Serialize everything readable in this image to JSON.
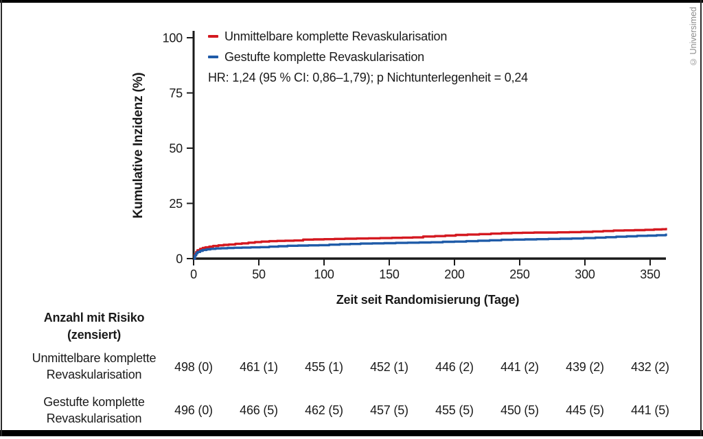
{
  "frame": {
    "copyright": "© Universimed"
  },
  "chart_data": {
    "type": "line",
    "subtype": "step-cumulative-incidence",
    "title": "",
    "xlabel": "Zeit seit Randomisierung (Tage)",
    "ylabel": "Kumulative Inzidenz (%)",
    "xlim": [
      0,
      365
    ],
    "ylim": [
      0,
      100
    ],
    "x_ticks": [
      0,
      50,
      100,
      150,
      200,
      250,
      300,
      350
    ],
    "y_ticks": [
      0,
      25,
      50,
      75,
      100
    ],
    "grid": false,
    "legend_position": "top-left-inside",
    "annotation": "HR: 1,24 (95 % CI: 0,86–1,79); p Nichtunterlegenheit = 0,24",
    "draw_end_day": 363,
    "series": [
      {
        "name": "Unmittelbare komplette Revaskularisation",
        "color": "#d41920",
        "points": [
          [
            0,
            0
          ],
          [
            1,
            2.0
          ],
          [
            2,
            3.0
          ],
          [
            3,
            3.8
          ],
          [
            5,
            4.4
          ],
          [
            7,
            4.8
          ],
          [
            9,
            5.1
          ],
          [
            12,
            5.4
          ],
          [
            15,
            5.7
          ],
          [
            19,
            6.0
          ],
          [
            23,
            6.2
          ],
          [
            27,
            6.4
          ],
          [
            32,
            6.7
          ],
          [
            37,
            6.9
          ],
          [
            42,
            7.2
          ],
          [
            47,
            7.5
          ],
          [
            52,
            7.7
          ],
          [
            58,
            7.9
          ],
          [
            64,
            8.0
          ],
          [
            70,
            8.1
          ],
          [
            77,
            8.2
          ],
          [
            84,
            8.6
          ],
          [
            92,
            8.7
          ],
          [
            100,
            8.8
          ],
          [
            108,
            8.9
          ],
          [
            116,
            9.0
          ],
          [
            125,
            9.1
          ],
          [
            134,
            9.2
          ],
          [
            143,
            9.3
          ],
          [
            152,
            9.4
          ],
          [
            160,
            9.5
          ],
          [
            168,
            9.6
          ],
          [
            176,
            10.0
          ],
          [
            185,
            10.2
          ],
          [
            193,
            10.4
          ],
          [
            201,
            10.7
          ],
          [
            210,
            10.9
          ],
          [
            219,
            11.1
          ],
          [
            228,
            11.3
          ],
          [
            236,
            11.5
          ],
          [
            244,
            11.6
          ],
          [
            252,
            11.7
          ],
          [
            261,
            11.8
          ],
          [
            270,
            11.8
          ],
          [
            279,
            11.9
          ],
          [
            288,
            12.0
          ],
          [
            297,
            12.1
          ],
          [
            306,
            12.3
          ],
          [
            314,
            12.5
          ],
          [
            322,
            12.7
          ],
          [
            330,
            12.8
          ],
          [
            338,
            12.9
          ],
          [
            346,
            13.0
          ],
          [
            353,
            13.2
          ],
          [
            359,
            13.3
          ],
          [
            362,
            13.4
          ]
        ]
      },
      {
        "name": "Gestufte komplette Revaskularisation",
        "color": "#1f5ba8",
        "points": [
          [
            0,
            0
          ],
          [
            1,
            1.5
          ],
          [
            2,
            2.4
          ],
          [
            3,
            3.0
          ],
          [
            5,
            3.5
          ],
          [
            7,
            3.9
          ],
          [
            10,
            4.2
          ],
          [
            13,
            4.4
          ],
          [
            17,
            4.6
          ],
          [
            21,
            4.7
          ],
          [
            26,
            4.8
          ],
          [
            31,
            4.9
          ],
          [
            37,
            5.0
          ],
          [
            44,
            5.1
          ],
          [
            51,
            5.2
          ],
          [
            58,
            5.4
          ],
          [
            65,
            5.6
          ],
          [
            72,
            5.8
          ],
          [
            80,
            5.9
          ],
          [
            88,
            6.0
          ],
          [
            96,
            6.1
          ],
          [
            104,
            6.3
          ],
          [
            112,
            6.5
          ],
          [
            120,
            6.6
          ],
          [
            128,
            6.8
          ],
          [
            137,
            6.9
          ],
          [
            146,
            7.0
          ],
          [
            155,
            7.1
          ],
          [
            164,
            7.2
          ],
          [
            173,
            7.3
          ],
          [
            182,
            7.4
          ],
          [
            191,
            7.6
          ],
          [
            200,
            7.7
          ],
          [
            209,
            7.9
          ],
          [
            218,
            8.1
          ],
          [
            227,
            8.3
          ],
          [
            236,
            8.5
          ],
          [
            245,
            8.6
          ],
          [
            254,
            8.7
          ],
          [
            263,
            8.8
          ],
          [
            272,
            8.9
          ],
          [
            281,
            9.0
          ],
          [
            290,
            9.1
          ],
          [
            299,
            9.3
          ],
          [
            308,
            9.5
          ],
          [
            316,
            9.7
          ],
          [
            324,
            9.9
          ],
          [
            332,
            10.1
          ],
          [
            340,
            10.3
          ],
          [
            348,
            10.4
          ],
          [
            355,
            10.6
          ],
          [
            362,
            10.8
          ]
        ]
      }
    ]
  },
  "risk_table": {
    "header_line1": "Anzahl mit Risiko",
    "header_line2": "(zensiert)",
    "rows": [
      {
        "label_line1": "Unmittelbare komplette",
        "label_line2": "Revaskularisation",
        "values": [
          "498 (0)",
          "461 (1)",
          "455 (1)",
          "452 (1)",
          "446 (2)",
          "441 (2)",
          "439 (2)",
          "432 (2)"
        ]
      },
      {
        "label_line1": "Gestufte komplette",
        "label_line2": "Revaskularisation",
        "values": [
          "496 (0)",
          "466 (5)",
          "462 (5)",
          "457 (5)",
          "455 (5)",
          "450 (5)",
          "445 (5)",
          "441 (5)"
        ]
      }
    ]
  }
}
